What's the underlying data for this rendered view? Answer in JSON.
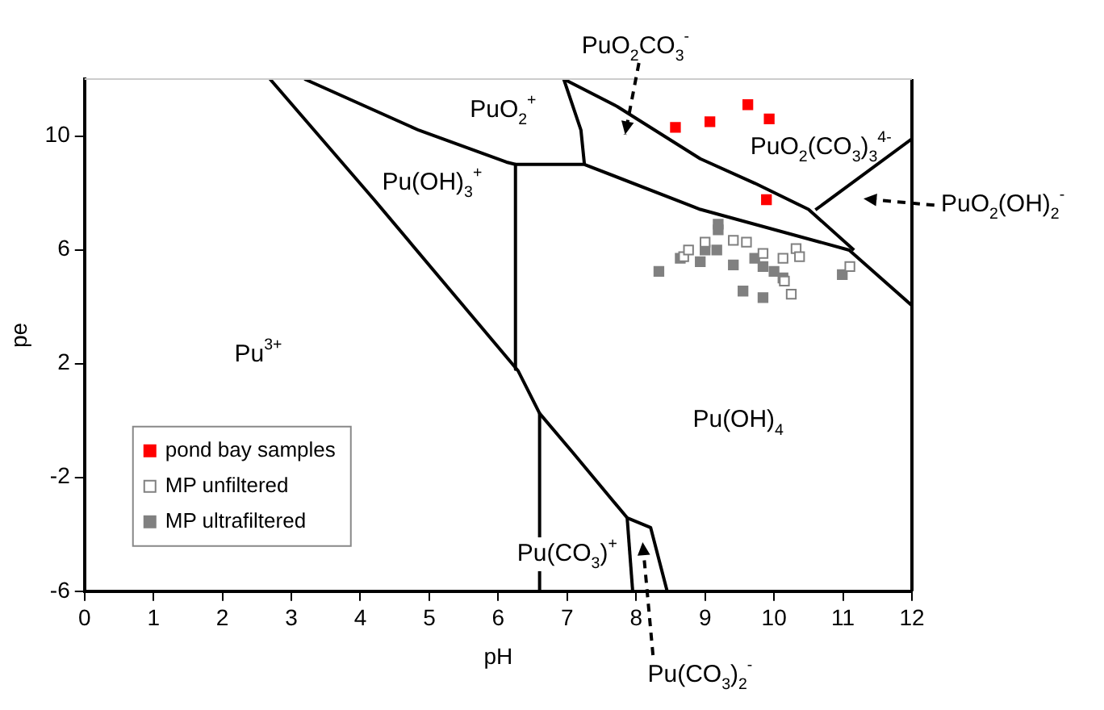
{
  "chart_data": {
    "type": "scatter",
    "xlabel": "pH",
    "ylabel": "pe",
    "xlim": [
      0,
      12
    ],
    "ylim": [
      -6,
      12
    ],
    "xticks": [
      0,
      1,
      2,
      3,
      4,
      5,
      6,
      7,
      8,
      9,
      10,
      11,
      12
    ],
    "yticks": [
      -6,
      -2,
      2,
      6,
      10
    ],
    "grid": false,
    "legend": "bottom left",
    "marker": "square",
    "series": [
      {
        "name": "pond bay samples",
        "type": "scatter",
        "color": "#ff0000",
        "x": [
          8.57,
          9.07,
          9.62,
          9.93,
          9.89
        ],
        "values": [
          10.3,
          10.5,
          11.1,
          10.6,
          7.76
        ]
      },
      {
        "name": "MP unfiltered",
        "type": "scatter",
        "color": "#ffffff",
        "x": [
          8.69,
          8.76,
          9.0,
          9.41,
          9.6,
          9.84,
          10.13,
          10.32,
          10.37,
          10.15,
          10.25,
          11.1
        ],
        "values": [
          5.76,
          5.99,
          6.27,
          6.33,
          6.27,
          5.87,
          5.7,
          6.04,
          5.76,
          4.9,
          4.44,
          5.41
        ]
      },
      {
        "name": "MP ultrafiltered",
        "type": "scatter",
        "color": "#808080",
        "x": [
          9.19,
          9.19,
          8.33,
          8.64,
          8.93,
          9.17,
          9.41,
          9.72,
          9.84,
          10.0,
          9.55,
          9.84,
          10.13,
          10.99,
          9.0
        ],
        "values": [
          6.9,
          6.7,
          5.24,
          5.7,
          5.58,
          5.99,
          5.47,
          5.7,
          5.41,
          5.24,
          4.55,
          4.32,
          5.01,
          5.13,
          5.99
        ]
      },
      {
        "type": "line",
        "marker": "none",
        "color": "#000000",
        "x": [
          2.69,
          4.2,
          6.29,
          6.6,
          7.08,
          7.87,
          8.21,
          8.45
        ],
        "values": [
          12,
          7.76,
          1.74,
          0.25,
          -1.12,
          -3.42,
          -3.76,
          -6
        ]
      },
      {
        "type": "line",
        "marker": "none",
        "color": "#000000",
        "x": [
          7.87,
          7.95
        ],
        "values": [
          -3.42,
          -6
        ]
      },
      {
        "type": "line",
        "marker": "none",
        "color": "#000000",
        "x": [
          6.6,
          6.6
        ],
        "values": [
          0.25,
          -6
        ]
      },
      {
        "type": "line",
        "marker": "none",
        "color": "#000000",
        "x": [
          6.25,
          6.25
        ],
        "values": [
          9.0,
          1.8
        ]
      },
      {
        "type": "line",
        "marker": "none",
        "color": "#000000",
        "x": [
          3.19,
          4.85,
          6.12,
          6.25,
          7.25,
          8.93,
          11.09,
          12
        ],
        "values": [
          12,
          10.2,
          9.08,
          9.0,
          9.0,
          7.42,
          5.99,
          4.04
        ]
      },
      {
        "type": "line",
        "marker": "none",
        "color": "#000000",
        "x": [
          7.25,
          7.2,
          6.95,
          7.73,
          8.93,
          9.72,
          10.5,
          11.16
        ],
        "values": [
          9.0,
          10.2,
          12,
          11.03,
          9.2,
          8.34,
          7.42,
          5.99
        ]
      },
      {
        "type": "line",
        "marker": "none",
        "color": "#000000",
        "x": [
          10.6,
          12
        ],
        "values": [
          7.4,
          9.9
        ]
      }
    ],
    "annotations": [
      "PuO$_{2}$$^{+}$",
      "Pu(OH)$_{3}$$^{+}$",
      "PuO$_{2}$(CO$_{3}$)$_{3}$$^{4-}$",
      "Pu$^{3+}$",
      "Pu(OH)$_{4}$",
      "Pu(CO$_{3}$)$^{+}$",
      "PuO$_{2}$CO$_{3}$$^{-}$",
      "PuO$_{2}$(OH)$_{2}$$^{-}$",
      "Pu(CO$_{3}$)$_{2}$$^{-}$"
    ]
  }
}
